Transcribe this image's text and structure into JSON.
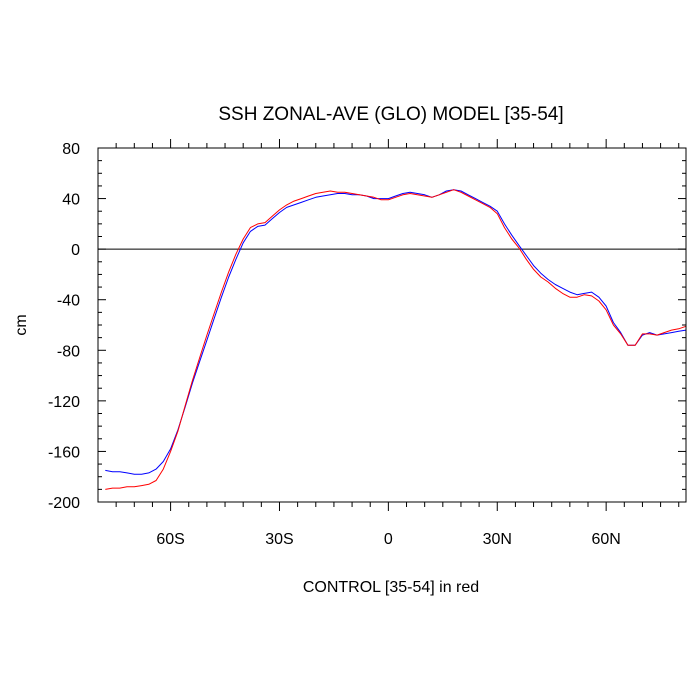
{
  "chart_data": {
    "type": "line",
    "title": "SSH ZONAL-AVE (GLO) MODEL [35-54]",
    "xlabel": "CONTROL [35-54] in red",
    "ylabel": "cm",
    "xlim": [
      -80,
      82
    ],
    "ylim": [
      -200,
      80
    ],
    "x_ticks": [
      {
        "value": -60,
        "label": "60S"
      },
      {
        "value": -30,
        "label": "30S"
      },
      {
        "value": 0,
        "label": "0"
      },
      {
        "value": 30,
        "label": "30N"
      },
      {
        "value": 60,
        "label": "60N"
      }
    ],
    "y_ticks": [
      {
        "value": 80,
        "label": "80"
      },
      {
        "value": 40,
        "label": "40"
      },
      {
        "value": 0,
        "label": "0"
      },
      {
        "value": -40,
        "label": "-40"
      },
      {
        "value": -80,
        "label": "-80"
      },
      {
        "value": -120,
        "label": "-120"
      },
      {
        "value": -160,
        "label": "-160"
      },
      {
        "value": -200,
        "label": "-200"
      }
    ],
    "reference_line_y": 0,
    "grid": false,
    "series": [
      {
        "color": "#0000ff",
        "x": [
          -78,
          -76,
          -74,
          -72,
          -70,
          -68,
          -66,
          -64,
          -62,
          -60,
          -58,
          -56,
          -54,
          -52,
          -50,
          -48,
          -46,
          -44,
          -42,
          -40,
          -38,
          -36,
          -34,
          -32,
          -30,
          -28,
          -26,
          -24,
          -22,
          -20,
          -18,
          -16,
          -14,
          -12,
          -10,
          -8,
          -6,
          -4,
          -2,
          0,
          2,
          4,
          6,
          8,
          10,
          12,
          14,
          16,
          18,
          20,
          22,
          24,
          26,
          28,
          30,
          32,
          34,
          36,
          38,
          40,
          42,
          44,
          46,
          48,
          50,
          52,
          54,
          56,
          58,
          60,
          62,
          64,
          66,
          68,
          70,
          72,
          74,
          76,
          78,
          80,
          82
        ],
        "y": [
          -175,
          -176,
          -176,
          -177,
          -178,
          -178,
          -177,
          -174,
          -168,
          -158,
          -143,
          -125,
          -106,
          -89,
          -72,
          -55,
          -38,
          -22,
          -8,
          5,
          14,
          18,
          19,
          24,
          29,
          33,
          35,
          37,
          39,
          41,
          42,
          43,
          44,
          44,
          43,
          43,
          42,
          40,
          40,
          40,
          42,
          44,
          45,
          44,
          43,
          41,
          43,
          46,
          47,
          46,
          43,
          40,
          37,
          34,
          30,
          20,
          11,
          3,
          -5,
          -13,
          -19,
          -24,
          -28,
          -31,
          -34,
          -36,
          -35,
          -34,
          -38,
          -45,
          -58,
          -66,
          -76,
          -76,
          -68,
          -66,
          -68,
          -67,
          -66,
          -65,
          -64
        ]
      },
      {
        "color": "#ff0000",
        "x": [
          -78,
          -76,
          -74,
          -72,
          -70,
          -68,
          -66,
          -64,
          -62,
          -60,
          -58,
          -56,
          -54,
          -52,
          -50,
          -48,
          -46,
          -44,
          -42,
          -40,
          -38,
          -36,
          -34,
          -32,
          -30,
          -28,
          -26,
          -24,
          -22,
          -20,
          -18,
          -16,
          -14,
          -12,
          -10,
          -8,
          -6,
          -4,
          -2,
          0,
          2,
          4,
          6,
          8,
          10,
          12,
          14,
          16,
          18,
          20,
          22,
          24,
          26,
          28,
          30,
          32,
          34,
          36,
          38,
          40,
          42,
          44,
          46,
          48,
          50,
          52,
          54,
          56,
          58,
          60,
          62,
          64,
          66,
          68,
          70,
          72,
          74,
          76,
          78,
          80,
          82
        ],
        "y": [
          -190,
          -189,
          -189,
          -188,
          -188,
          -187,
          -186,
          -183,
          -174,
          -160,
          -144,
          -124,
          -104,
          -86,
          -68,
          -51,
          -34,
          -18,
          -4,
          8,
          17,
          20,
          21,
          26,
          31,
          35,
          38,
          40,
          42,
          44,
          45,
          46,
          45,
          45,
          44,
          43,
          42,
          41,
          39,
          39,
          41,
          43,
          44,
          43,
          42,
          41,
          43,
          45,
          47,
          45,
          42,
          39,
          36,
          33,
          28,
          17,
          8,
          1,
          -8,
          -16,
          -22,
          -26,
          -31,
          -35,
          -38,
          -38,
          -36,
          -37,
          -41,
          -48,
          -60,
          -67,
          -76,
          -76,
          -67,
          -67,
          -68,
          -66,
          -64,
          -63,
          -61
        ]
      }
    ]
  }
}
